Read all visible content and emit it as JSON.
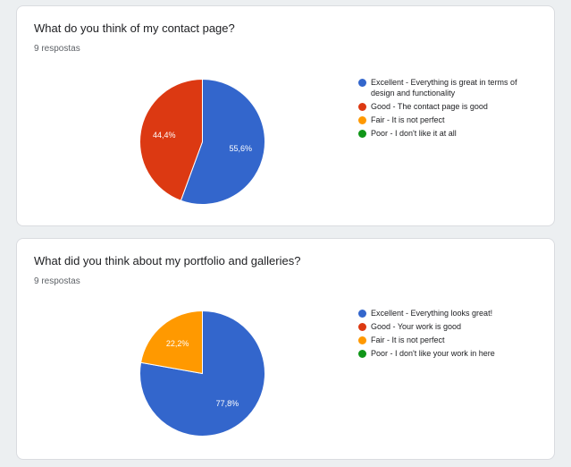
{
  "questions": [
    {
      "title": "What do you think of my contact page?",
      "responses": "9 respostas",
      "legend": [
        {
          "label": "Excellent - Everything is great in terms of design and functionality",
          "color": "#3366cc"
        },
        {
          "label": "Good - The contact page is good",
          "color": "#dc3912"
        },
        {
          "label": "Fair - It is not perfect",
          "color": "#ff9900"
        },
        {
          "label": "Poor - I don't like it at all",
          "color": "#109618"
        }
      ]
    },
    {
      "title": "What did you think about my portfolio and galleries?",
      "responses": "9 respostas",
      "legend": [
        {
          "label": "Excellent - Everything looks great!",
          "color": "#3366cc"
        },
        {
          "label": "Good - Your work is good",
          "color": "#dc3912"
        },
        {
          "label": "Fair - It is not perfect",
          "color": "#ff9900"
        },
        {
          "label": "Poor - I don't like your work in here",
          "color": "#109618"
        }
      ]
    }
  ],
  "chart_data": [
    {
      "type": "pie",
      "title": "What do you think of my contact page?",
      "categories": [
        "Excellent - Everything is great in terms of design and functionality",
        "Good - The contact page is good",
        "Fair - It is not perfect",
        "Poor - I don't like it at all"
      ],
      "values": [
        55.6,
        44.4,
        0,
        0
      ],
      "labels": [
        "55,6%",
        "44,4%",
        "",
        ""
      ],
      "colors": [
        "#3366cc",
        "#dc3912",
        "#ff9900",
        "#109618"
      ],
      "legend": "right"
    },
    {
      "type": "pie",
      "title": "What did you think about my portfolio and galleries?",
      "categories": [
        "Excellent - Everything looks great!",
        "Good - Your work is good",
        "Fair - It is not perfect",
        "Poor - I don't like your work in here"
      ],
      "values": [
        77.8,
        0,
        22.2,
        0
      ],
      "labels": [
        "77,8%",
        "",
        "22,2%",
        ""
      ],
      "colors": [
        "#3366cc",
        "#dc3912",
        "#ff9900",
        "#109618"
      ],
      "legend": "right"
    }
  ]
}
